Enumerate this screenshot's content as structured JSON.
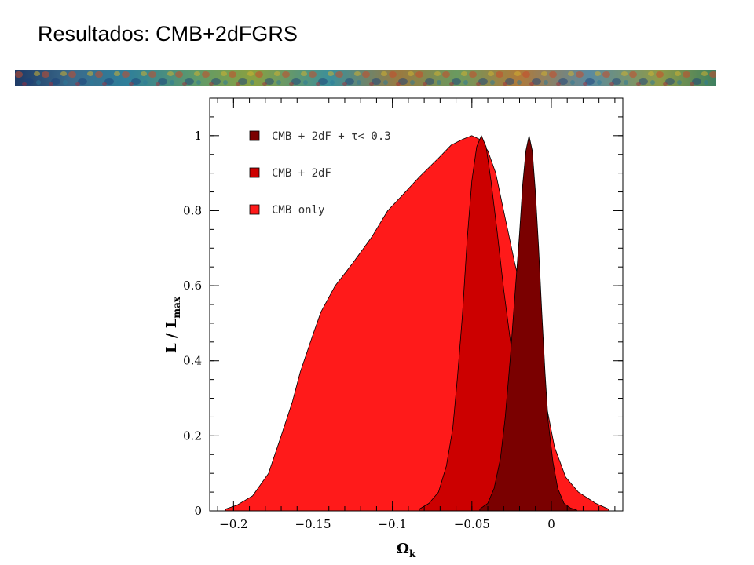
{
  "slide": {
    "title": "Resultados: CMB+2dFGRS"
  },
  "banner": {
    "icon": "cmb-map-strip"
  },
  "chart_data": {
    "type": "area",
    "title": "",
    "xlabel": "Ω",
    "xlabel_sub": "k",
    "ylabel": "L / L",
    "ylabel_sub": "max",
    "xlim": [
      -0.215,
      0.045
    ],
    "ylim": [
      0,
      1.1
    ],
    "xticks": [
      -0.2,
      -0.15,
      -0.1,
      -0.05,
      0
    ],
    "xtick_labels": [
      "−0.2",
      "−0.15",
      "−0.1",
      "−0.05",
      "0"
    ],
    "yticks": [
      0,
      0.2,
      0.4,
      0.6,
      0.8,
      1
    ],
    "ytick_labels": [
      "0",
      "0.2",
      "0.4",
      "0.6",
      "0.8",
      "1"
    ],
    "grid": false,
    "legend_position": "top-left",
    "series": [
      {
        "name": "CMB only",
        "color": "#ff1a1a",
        "x": [
          -0.205,
          -0.198,
          -0.188,
          -0.178,
          -0.17,
          -0.163,
          -0.158,
          -0.15,
          -0.145,
          -0.136,
          -0.125,
          -0.113,
          -0.103,
          -0.094,
          -0.083,
          -0.071,
          -0.063,
          -0.056,
          -0.05,
          -0.045,
          -0.04,
          -0.035,
          -0.031,
          -0.027,
          -0.023,
          -0.018,
          -0.01,
          -0.004,
          0.002,
          0.009,
          0.017,
          0.028,
          0.036
        ],
        "values": [
          0.005,
          0.015,
          0.04,
          0.1,
          0.2,
          0.29,
          0.37,
          0.47,
          0.53,
          0.6,
          0.66,
          0.73,
          0.8,
          0.84,
          0.89,
          0.94,
          0.975,
          0.99,
          1.0,
          0.99,
          0.96,
          0.9,
          0.82,
          0.74,
          0.66,
          0.57,
          0.43,
          0.3,
          0.17,
          0.09,
          0.05,
          0.02,
          0.005
        ]
      },
      {
        "name": "CMB + 2dF",
        "color": "#cc0000",
        "x": [
          -0.083,
          -0.077,
          -0.071,
          -0.066,
          -0.062,
          -0.059,
          -0.056,
          -0.053,
          -0.05,
          -0.047,
          -0.044,
          -0.041,
          -0.038,
          -0.034,
          -0.03,
          -0.026,
          -0.022,
          -0.018,
          -0.014,
          -0.009,
          -0.004,
          0.002,
          0.008
        ],
        "values": [
          0.005,
          0.02,
          0.05,
          0.12,
          0.22,
          0.36,
          0.52,
          0.72,
          0.88,
          0.97,
          1.0,
          0.97,
          0.88,
          0.74,
          0.59,
          0.46,
          0.34,
          0.23,
          0.14,
          0.07,
          0.03,
          0.01,
          0.003
        ]
      },
      {
        "name": "CMB + 2dF + τ< 0.3",
        "color": "#7a0000",
        "x": [
          -0.045,
          -0.04,
          -0.036,
          -0.032,
          -0.029,
          -0.026,
          -0.023,
          -0.02,
          -0.018,
          -0.016,
          -0.014,
          -0.012,
          -0.01,
          -0.008,
          -0.006,
          -0.004,
          -0.002,
          0.001,
          0.004,
          0.008,
          0.012,
          0.016
        ],
        "values": [
          0.005,
          0.02,
          0.06,
          0.14,
          0.25,
          0.4,
          0.57,
          0.74,
          0.87,
          0.96,
          1.0,
          0.96,
          0.85,
          0.7,
          0.53,
          0.37,
          0.24,
          0.13,
          0.06,
          0.02,
          0.008,
          0.002
        ]
      }
    ],
    "legend_order": [
      "CMB + 2dF + τ< 0.3",
      "CMB + 2dF",
      "CMB only"
    ]
  }
}
